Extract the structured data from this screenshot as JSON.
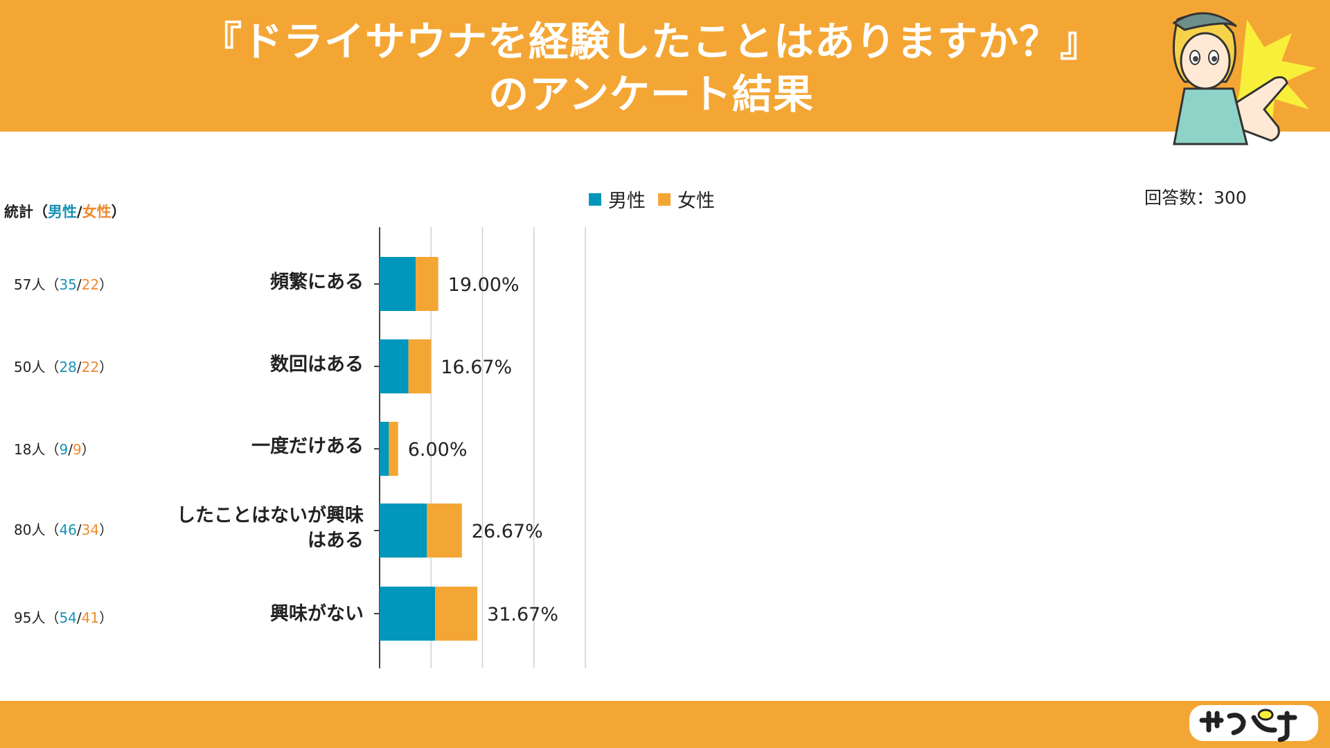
{
  "header": {
    "title_line1": "『ドライサウナを経験したことはありますか？』",
    "title_line2": "のアンケート結果"
  },
  "colors": {
    "male": "#0196bb",
    "female": "#f4a634",
    "band": "#f4a634"
  },
  "total_label": "回答数：300",
  "stats_header": {
    "prefix": "統計（",
    "male": "男性",
    "sep": "/",
    "female": "女性",
    "suffix": "）"
  },
  "chart_data": {
    "type": "bar",
    "orientation": "horizontal",
    "stacked": true,
    "categories": [
      "頻繁にある",
      "数回はある",
      "一度だけある",
      "したことはないが興味はある",
      "興味がない"
    ],
    "category_lines": [
      [
        "頻繁にある"
      ],
      [
        "数回はある"
      ],
      [
        "一度だけある"
      ],
      [
        "したことはないが興味",
        "はある"
      ],
      [
        "興味がない"
      ]
    ],
    "series": [
      {
        "name": "男性",
        "values": [
          35,
          28,
          9,
          46,
          54
        ]
      },
      {
        "name": "女性",
        "values": [
          22,
          22,
          9,
          34,
          41
        ]
      }
    ],
    "totals": [
      57,
      50,
      18,
      80,
      95
    ],
    "percent_labels": [
      "19.00%",
      "16.67%",
      "6.00%",
      "26.67%",
      "31.67%"
    ],
    "xlim": [
      0,
      200
    ],
    "grid": true,
    "legend": "top-center"
  },
  "stats": [
    {
      "count": "57人",
      "male": "35",
      "female": "22"
    },
    {
      "count": "50人",
      "male": "28",
      "female": "22"
    },
    {
      "count": "18人",
      "male": "9",
      "female": "9"
    },
    {
      "count": "80人",
      "male": "46",
      "female": "34"
    },
    {
      "count": "95人",
      "male": "54",
      "female": "41"
    }
  ]
}
